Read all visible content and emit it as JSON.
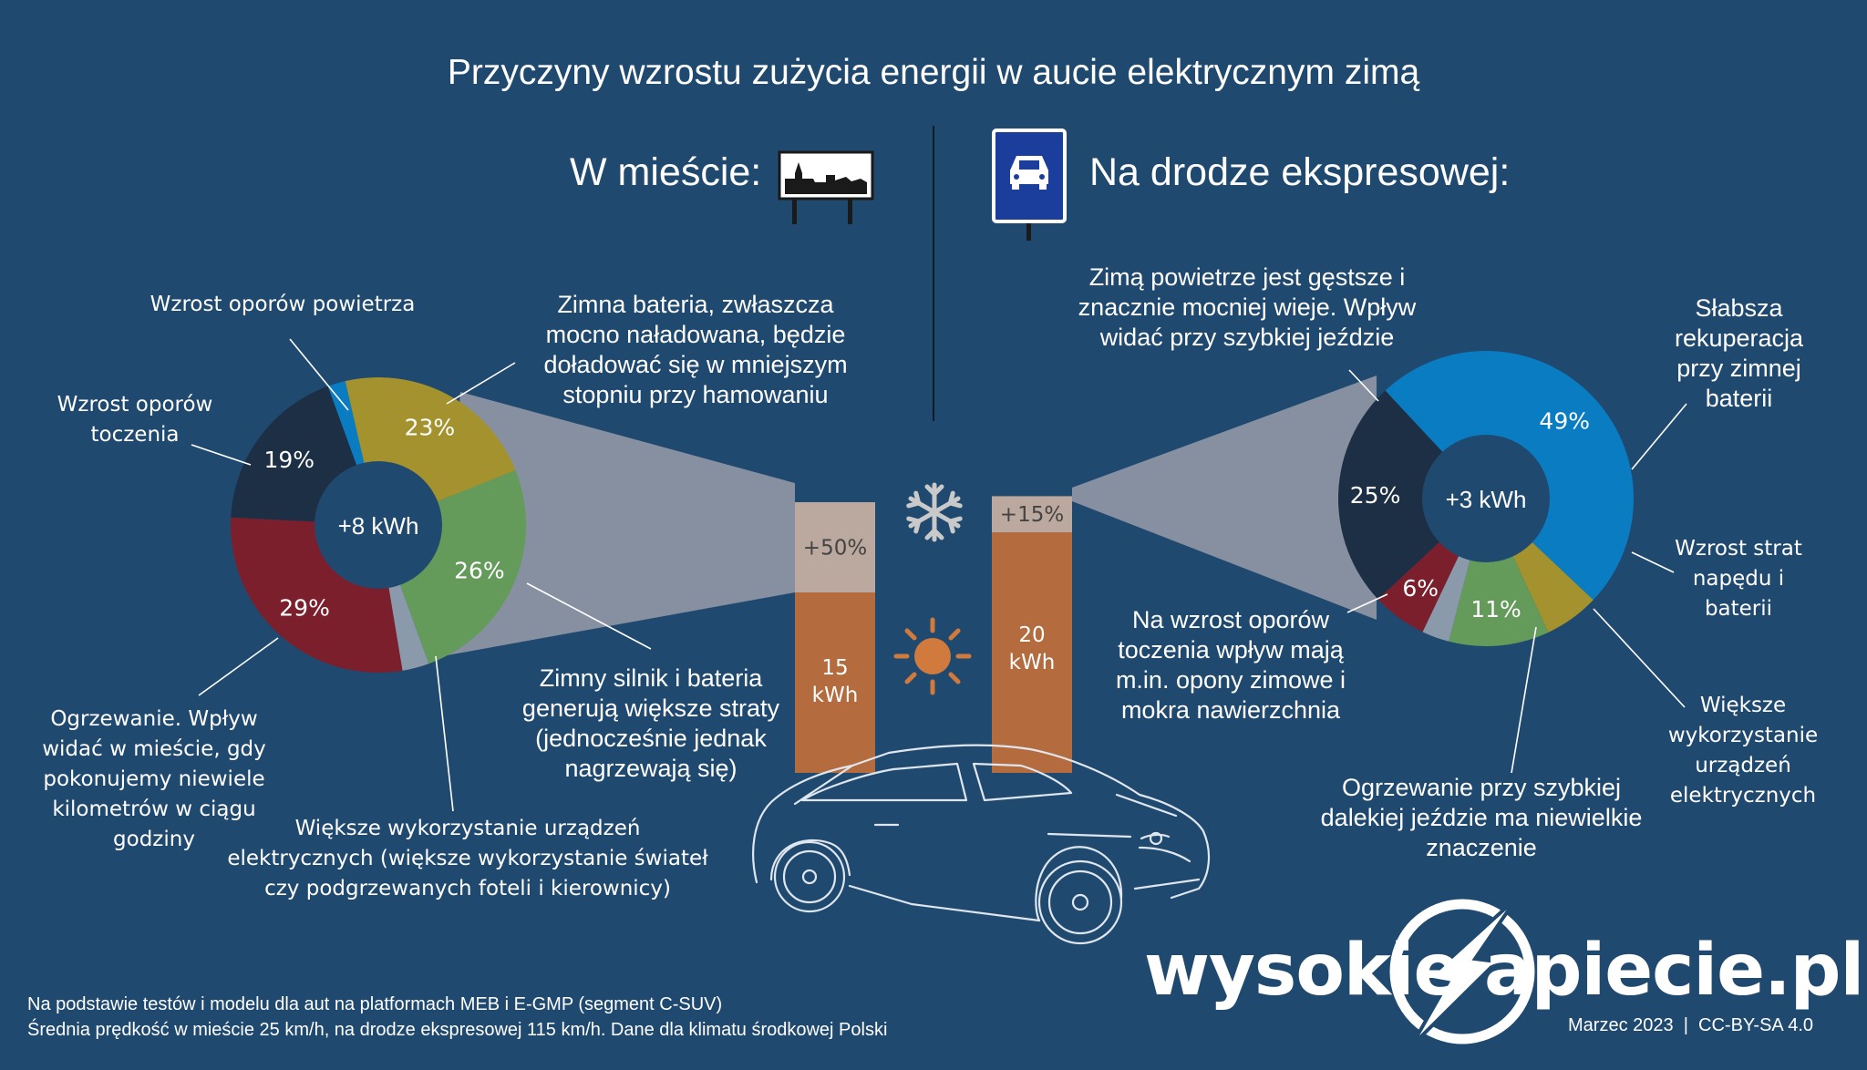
{
  "title": "Przyczyny wzrostu zużycia energii w aucie elektrycznym zimą",
  "colors": {
    "background": "#20496f",
    "olive": "#a3922e",
    "green": "#649b5b",
    "grey": "#8a9aab",
    "maroon": "#7c1f2d",
    "navy": "#1d2f45",
    "blue": "#0a7cc1",
    "bar_brown": "#b46b3d",
    "bar_light": "#bba89e",
    "funnel": "#8790a0"
  },
  "city": {
    "header": "W mieście:",
    "sign_icon": "city-limit-sign-icon",
    "center_label": "+8 kWh",
    "labels": {
      "air": "Wzrost oporów powietrza",
      "rolling": "Wzrost oporów toczenia",
      "battery": "Zimna bateria, zwłaszcza mocno naładowana, będzie doładować się w mniejszym stopniu przy hamowaniu",
      "drivetrain": "Zimny silnik i bateria generują większe straty (jednocześnie jednak nagrzewają się)",
      "electrical": "Większe wykorzystanie urządzeń elektrycznych (większe wykorzystanie świateł czy podgrzewanych foteli i kierownicy)",
      "heating": "Ogrzewanie. Wpływ widać w mieście, gdy pokonujemy niewiele kilometrów w ciągu godziny"
    }
  },
  "highway": {
    "header": "Na drodze ekspresowej:",
    "sign_icon": "expressway-sign-icon",
    "center_label": "+3 kWh",
    "labels": {
      "air": "Zimą powietrze jest gęstsze i znacznie mocniej wieje. Wpływ widać przy szybkiej jeździe",
      "regen": "Słabsza rekuperacja przy zimnej baterii",
      "drivetrain": "Wzrost strat napędu i baterii",
      "electrical": "Większe wykorzystanie urządzeń elektrycznych",
      "heating": "Ogrzewanie przy szybkiej dalekiej jeździe ma niewielkie znaczenie",
      "rolling": "Na wzrost oporów toczenia wpływ mają m.in. opony zimowe i mokra nawierzchnia"
    }
  },
  "chart_data": [
    {
      "type": "pie",
      "name": "city-donut",
      "center": "+8 kWh",
      "slices": [
        {
          "key": "air",
          "value": 2,
          "label": "",
          "color": "#0a7cc1"
        },
        {
          "key": "battery",
          "value": 23,
          "label": "23%",
          "color": "#a3922e"
        },
        {
          "key": "drivetrain",
          "value": 26,
          "label": "26%",
          "color": "#649b5b"
        },
        {
          "key": "electrical",
          "value": 3,
          "label": "",
          "color": "#8a9aab"
        },
        {
          "key": "heating",
          "value": 29,
          "label": "29%",
          "color": "#7c1f2d"
        },
        {
          "key": "rolling",
          "value": 19,
          "label": "19%",
          "color": "#1d2f45"
        }
      ]
    },
    {
      "type": "pie",
      "name": "highway-donut",
      "center": "+3 kWh",
      "slices": [
        {
          "key": "air",
          "value": 49,
          "label": "49%",
          "color": "#0a7cc1"
        },
        {
          "key": "regen",
          "value": 6,
          "label": "",
          "color": "#a3922e"
        },
        {
          "key": "drivetrain",
          "value": 11,
          "label": "11%",
          "color": "#649b5b"
        },
        {
          "key": "electrical",
          "value": 3,
          "label": "",
          "color": "#8a9aab"
        },
        {
          "key": "heating",
          "value": 6,
          "label": "6%",
          "color": "#7c1f2d"
        },
        {
          "key": "rolling",
          "value": 25,
          "label": "25%",
          "color": "#1d2f45"
        }
      ]
    },
    {
      "type": "bar",
      "name": "energy-bars",
      "categories": [
        "W mieście",
        "Na drodze ekspresowej"
      ],
      "base_kwh": [
        15,
        20
      ],
      "winter_increase_pct": [
        50,
        15
      ],
      "base_labels": [
        "15 kWh",
        "20 kWh"
      ],
      "increase_labels": [
        "+50%",
        "+15%"
      ]
    }
  ],
  "footer": {
    "note_line1": "Na podstawie testów i modelu dla aut na platformach MEB i E-GMP (segment C-SUV)",
    "note_line2": "Średnia prędkość w mieście 25 km/h, na drodze ekspresowej 115 km/h. Dane dla klimatu środkowej Polski",
    "brand_left": "wysokie",
    "brand_right": "apiecie.pl",
    "date_license": "Marzec 2023  |  CC-BY-SA 4.0"
  }
}
